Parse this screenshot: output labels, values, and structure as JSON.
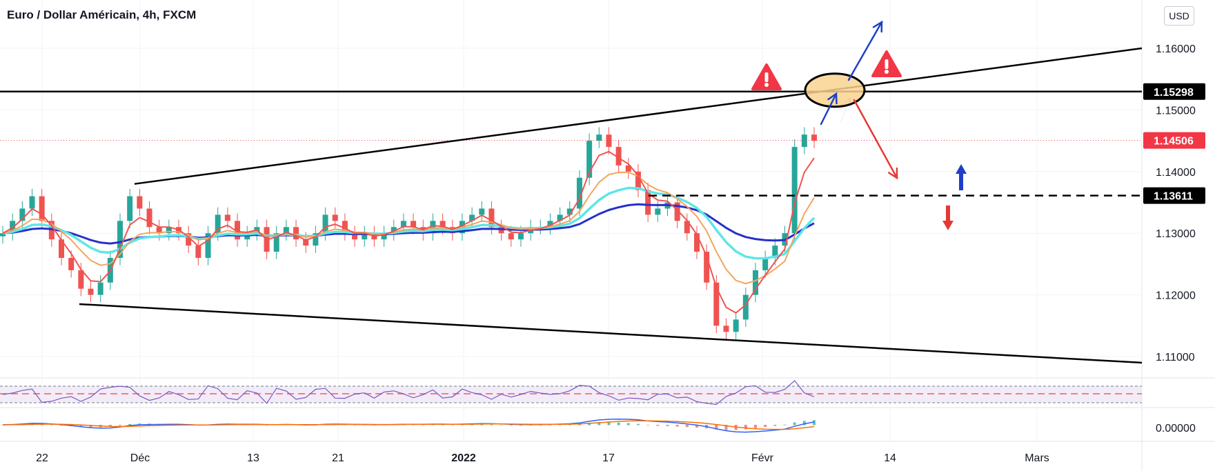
{
  "header": {
    "title": "Euro / Dollar Américain, 4h, FXCM",
    "currency": "USD"
  },
  "chart_data": {
    "type": "candlestick",
    "title": "Euro / Dollar Américain, 4h, FXCM",
    "x_tick_labels": [
      "22",
      "Déc",
      "13",
      "21",
      "2022",
      "17",
      "Févr",
      "14",
      "Mars"
    ],
    "y_tick_labels": [
      "1.16000",
      "1.15000",
      "1.14000",
      "1.13000",
      "1.12000",
      "1.11000"
    ],
    "y_ticks": [
      1.16,
      1.15,
      1.14,
      1.13,
      1.12,
      1.11
    ],
    "ylim": [
      1.105,
      1.165
    ],
    "price_labels": [
      {
        "text": "1.15298",
        "value": 1.15298,
        "style": "black"
      },
      {
        "text": "1.14506",
        "value": 1.14506,
        "style": "red"
      },
      {
        "text": "1.13611",
        "value": 1.13611,
        "style": "black"
      }
    ],
    "horizontal_levels": [
      {
        "value": 1.15298,
        "style": "solid"
      },
      {
        "value": 1.13611,
        "style": "dashed"
      },
      {
        "value": 1.14506,
        "style": "dotted-red"
      }
    ],
    "close_series": [
      1.13,
      1.132,
      1.134,
      1.136,
      1.132,
      1.129,
      1.126,
      1.124,
      1.121,
      1.12,
      1.122,
      1.126,
      1.132,
      1.136,
      1.134,
      1.131,
      1.13,
      1.131,
      1.13,
      1.128,
      1.126,
      1.13,
      1.133,
      1.132,
      1.129,
      1.13,
      1.131,
      1.127,
      1.13,
      1.131,
      1.129,
      1.128,
      1.13,
      1.133,
      1.132,
      1.13,
      1.129,
      1.13,
      1.129,
      1.13,
      1.131,
      1.132,
      1.131,
      1.13,
      1.132,
      1.131,
      1.13,
      1.132,
      1.133,
      1.134,
      1.131,
      1.13,
      1.129,
      1.13,
      1.131,
      1.131,
      1.132,
      1.133,
      1.134,
      1.139,
      1.145,
      1.146,
      1.144,
      1.141,
      1.14,
      1.137,
      1.133,
      1.134,
      1.135,
      1.132,
      1.13,
      1.127,
      1.122,
      1.115,
      1.114,
      1.116,
      1.12,
      1.124,
      1.126,
      1.128,
      1.13,
      1.144,
      1.146,
      1.145
    ],
    "series": [
      {
        "name": "",
        "color": "#2630c9"
      },
      {
        "name": "",
        "color": "#5ee6e6"
      },
      {
        "name": "",
        "color": "#f4a45e"
      },
      {
        "name": "",
        "color": "#ef5350"
      }
    ],
    "annotations": {
      "upper_resistance_line": {
        "from_value": 1.138,
        "to_value": 1.16
      },
      "lower_support_line": {
        "from_value": 1.1185,
        "to_value": 1.109
      },
      "breakout_zone": {
        "value": 1.15298
      },
      "arrows": [
        "up-blue",
        "down-red",
        "up-blue-small",
        "down-red-small",
        "up-blue-breakout",
        "down-red-rejection"
      ],
      "warnings": [
        "warning-icon",
        "warning-icon"
      ]
    },
    "rsi": {
      "upper_band": 70,
      "lower_band": 30,
      "mid": 50
    },
    "macd_label": "0.00000",
    "grid": true
  },
  "colors": {
    "up": "#26a69a",
    "down": "#ef5350",
    "axis_bg": "#ffffff",
    "price_red": "#f23645"
  }
}
